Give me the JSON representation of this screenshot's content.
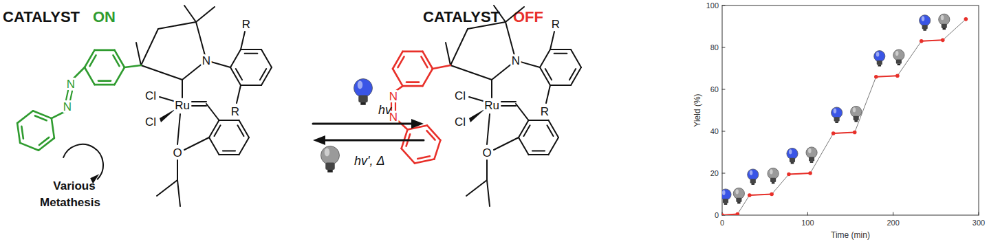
{
  "scheme": {
    "catalyst_on": {
      "label": "CATALYST",
      "state": "ON",
      "atoms": [
        "N",
        "N",
        "N",
        "Cl",
        "Cl",
        "Ru",
        "O",
        "R",
        "R"
      ]
    },
    "catalyst_off": {
      "label": "CATALYST",
      "state": "OFF",
      "atoms": [
        "N",
        "N",
        "N",
        "Cl",
        "Cl",
        "Ru",
        "O",
        "R",
        "R"
      ]
    },
    "cycle_label": [
      "Various",
      "Metathesis"
    ],
    "forward_condition": "hv",
    "reverse_condition": "hv', Δ"
  },
  "chart_data": {
    "type": "line",
    "x_label": "Time (min)",
    "y_label": "Yield (%)",
    "x": [
      0,
      18,
      32,
      58,
      78,
      103,
      130,
      155,
      180,
      205,
      233,
      258,
      285
    ],
    "series": [
      {
        "color": "#e8302a",
        "marker": "circle",
        "values": [
          0,
          0.5,
          9.5,
          10,
          19.5,
          20,
          39,
          39.5,
          66,
          66.5,
          83,
          83.5,
          93.5
        ]
      }
    ],
    "xlim": [
      0,
      300
    ],
    "xticks": [
      0,
      100,
      200,
      300
    ],
    "ylim": [
      0,
      100
    ],
    "yticks": [
      0,
      20,
      40,
      60,
      80,
      100
    ]
  }
}
